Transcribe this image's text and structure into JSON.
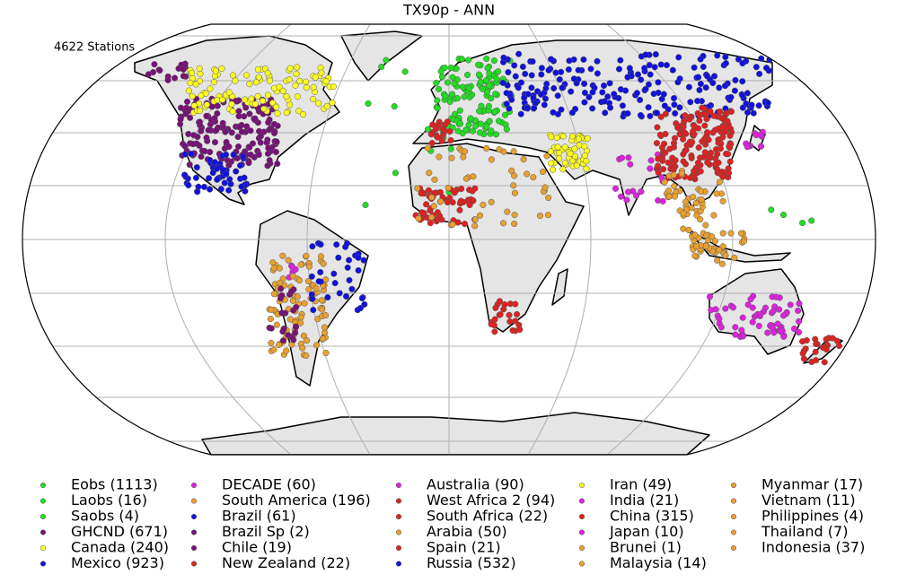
{
  "title": "TX90p - ANN",
  "station_count": "4622 Stations",
  "legend": [
    {
      "label": "Eobs (1113)",
      "color": "#22dd22"
    },
    {
      "label": "Laobs (16)",
      "color": "#22dd22"
    },
    {
      "label": "Saobs (4)",
      "color": "#22dd22"
    },
    {
      "label": "GHCND (671)",
      "color": "#771177"
    },
    {
      "label": "Canada (240)",
      "color": "#ffff22"
    },
    {
      "label": "Mexico (923)",
      "color": "#1111dd"
    },
    {
      "label": "DECADE (60)",
      "color": "#dd22dd"
    },
    {
      "label": "South America (196)",
      "color": "#e8a030"
    },
    {
      "label": "Brazil (61)",
      "color": "#1111dd"
    },
    {
      "label": "Brazil Sp (2)",
      "color": "#771177"
    },
    {
      "label": "Chile (19)",
      "color": "#771177"
    },
    {
      "label": "New Zealand (22)",
      "color": "#dd2222"
    },
    {
      "label": "Australia (90)",
      "color": "#dd22dd"
    },
    {
      "label": "West Africa 2 (94)",
      "color": "#dd2222"
    },
    {
      "label": "South Africa (22)",
      "color": "#dd2222"
    },
    {
      "label": "Arabia (50)",
      "color": "#e8a030"
    },
    {
      "label": "Spain (21)",
      "color": "#dd2222"
    },
    {
      "label": "Russia (532)",
      "color": "#1111dd"
    },
    {
      "label": "Iran (49)",
      "color": "#ffff22"
    },
    {
      "label": "India (21)",
      "color": "#dd22dd"
    },
    {
      "label": "China (315)",
      "color": "#dd2222"
    },
    {
      "label": "Japan (10)",
      "color": "#dd22dd"
    },
    {
      "label": "Brunei (1)",
      "color": "#e8a030"
    },
    {
      "label": "Malaysia (14)",
      "color": "#e8a030"
    },
    {
      "label": "Myanmar (17)",
      "color": "#e8a030"
    },
    {
      "label": "Vietnam (11)",
      "color": "#e8a030"
    },
    {
      "label": "Philippines (4)",
      "color": "#e8a030"
    },
    {
      "label": "Thailand (7)",
      "color": "#e8a030"
    },
    {
      "label": "Indonesia (37)",
      "color": "#e8a030"
    }
  ]
}
